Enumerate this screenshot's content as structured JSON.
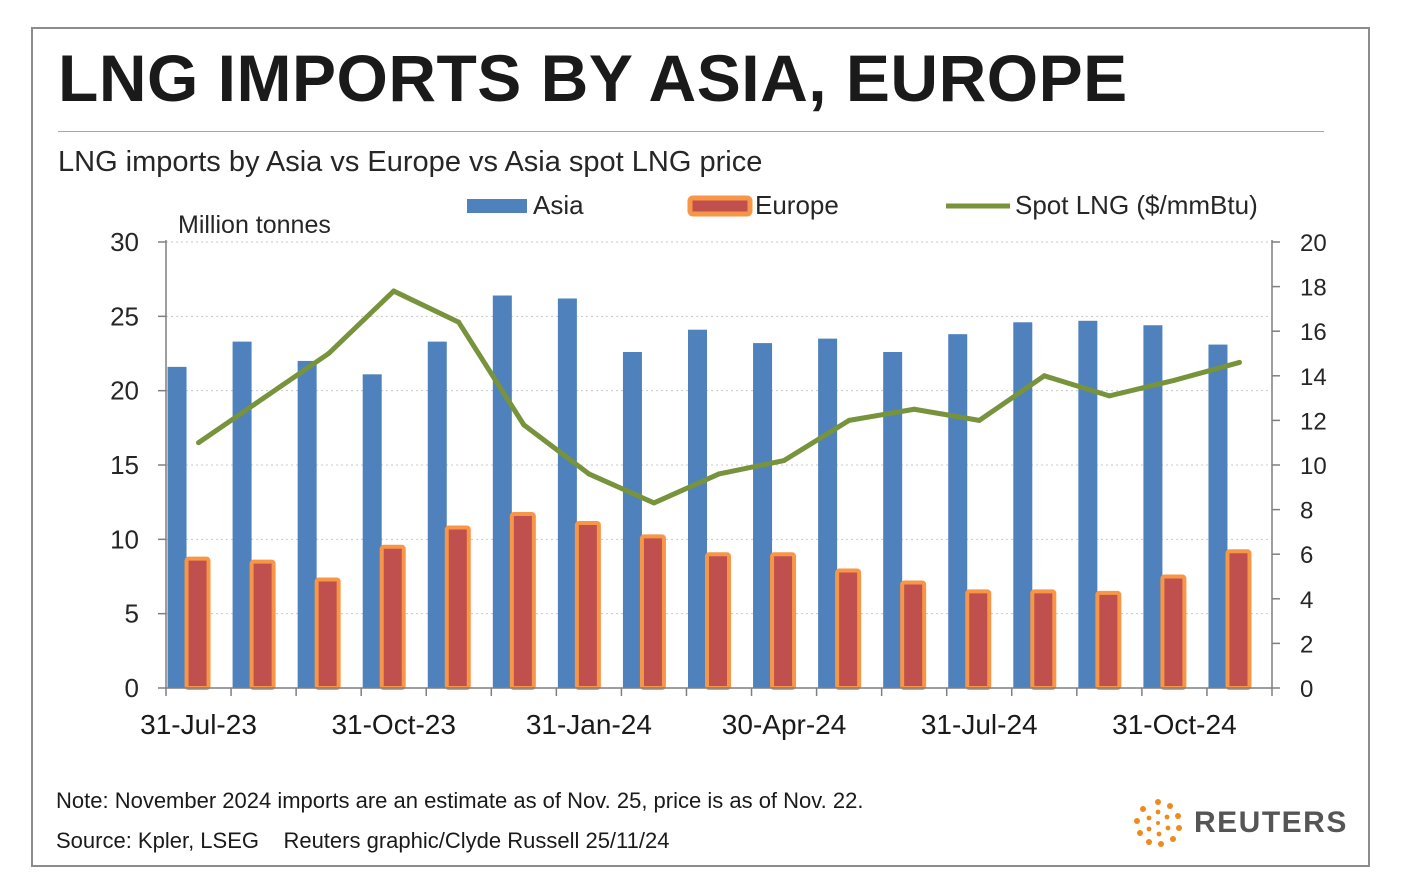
{
  "title": "LNG IMPORTS BY ASIA, EUROPE",
  "subtitle": "LNG imports by Asia vs Europe vs Asia spot LNG price",
  "note": "Note: November 2024 imports are an estimate as of Nov. 25, price is as of Nov. 22.",
  "source": "Source: Kpler, LSEG    Reuters graphic/Clyde Russell 25/11/24",
  "logo": {
    "text": "REUTERS",
    "icon": "reuters-dot-circle-icon"
  },
  "colors": {
    "asia": "#4f81bd",
    "europe_fill": "#c0504d",
    "europe_border": "#f79646",
    "spot": "#77933c"
  },
  "chart_data": {
    "type": "bar",
    "ylabel": "Million tonnes",
    "ylim": [
      0,
      30
    ],
    "y2lim": [
      0,
      20
    ],
    "y_ticks": [
      "0",
      "5",
      "10",
      "15",
      "20",
      "25",
      "30"
    ],
    "y2_ticks": [
      "0",
      "2",
      "4",
      "6",
      "8",
      "10",
      "12",
      "14",
      "16",
      "18",
      "20"
    ],
    "x_tick_labels": [
      "31-Jul-23",
      "31-Oct-23",
      "31-Jan-24",
      "30-Apr-24",
      "31-Jul-24",
      "31-Oct-24"
    ],
    "x_tick_positions": [
      0,
      3,
      6,
      9,
      12,
      15
    ],
    "categories": [
      "Jul-23",
      "Aug-23",
      "Sep-23",
      "Oct-23",
      "Nov-23",
      "Dec-23",
      "Jan-24",
      "Feb-24",
      "Mar-24",
      "Apr-24",
      "May-24",
      "Jun-24",
      "Jul-24",
      "Aug-24",
      "Sep-24",
      "Oct-24",
      "Nov-24"
    ],
    "legend": [
      "Asia",
      "Europe",
      "Spot LNG ($/mmBtu)"
    ],
    "legend_position": "top",
    "series": [
      {
        "name": "Asia",
        "type": "bar",
        "axis": "left",
        "values": [
          21.6,
          23.3,
          22.0,
          21.1,
          23.3,
          26.4,
          26.2,
          22.6,
          24.1,
          23.2,
          23.5,
          22.6,
          23.8,
          24.6,
          24.7,
          24.4,
          23.1
        ]
      },
      {
        "name": "Europe",
        "type": "bar",
        "axis": "left",
        "values": [
          8.7,
          8.5,
          7.3,
          9.5,
          10.8,
          11.7,
          11.1,
          10.2,
          9.0,
          9.0,
          7.9,
          7.1,
          6.5,
          6.5,
          6.4,
          7.5,
          9.2
        ]
      },
      {
        "name": "Spot LNG ($/mmBtu)",
        "type": "line",
        "axis": "right",
        "values": [
          11.0,
          13.0,
          15.0,
          17.8,
          16.4,
          11.8,
          9.6,
          8.3,
          9.6,
          10.2,
          12.0,
          12.5,
          12.0,
          14.0,
          13.1,
          13.8,
          14.6
        ]
      }
    ]
  }
}
